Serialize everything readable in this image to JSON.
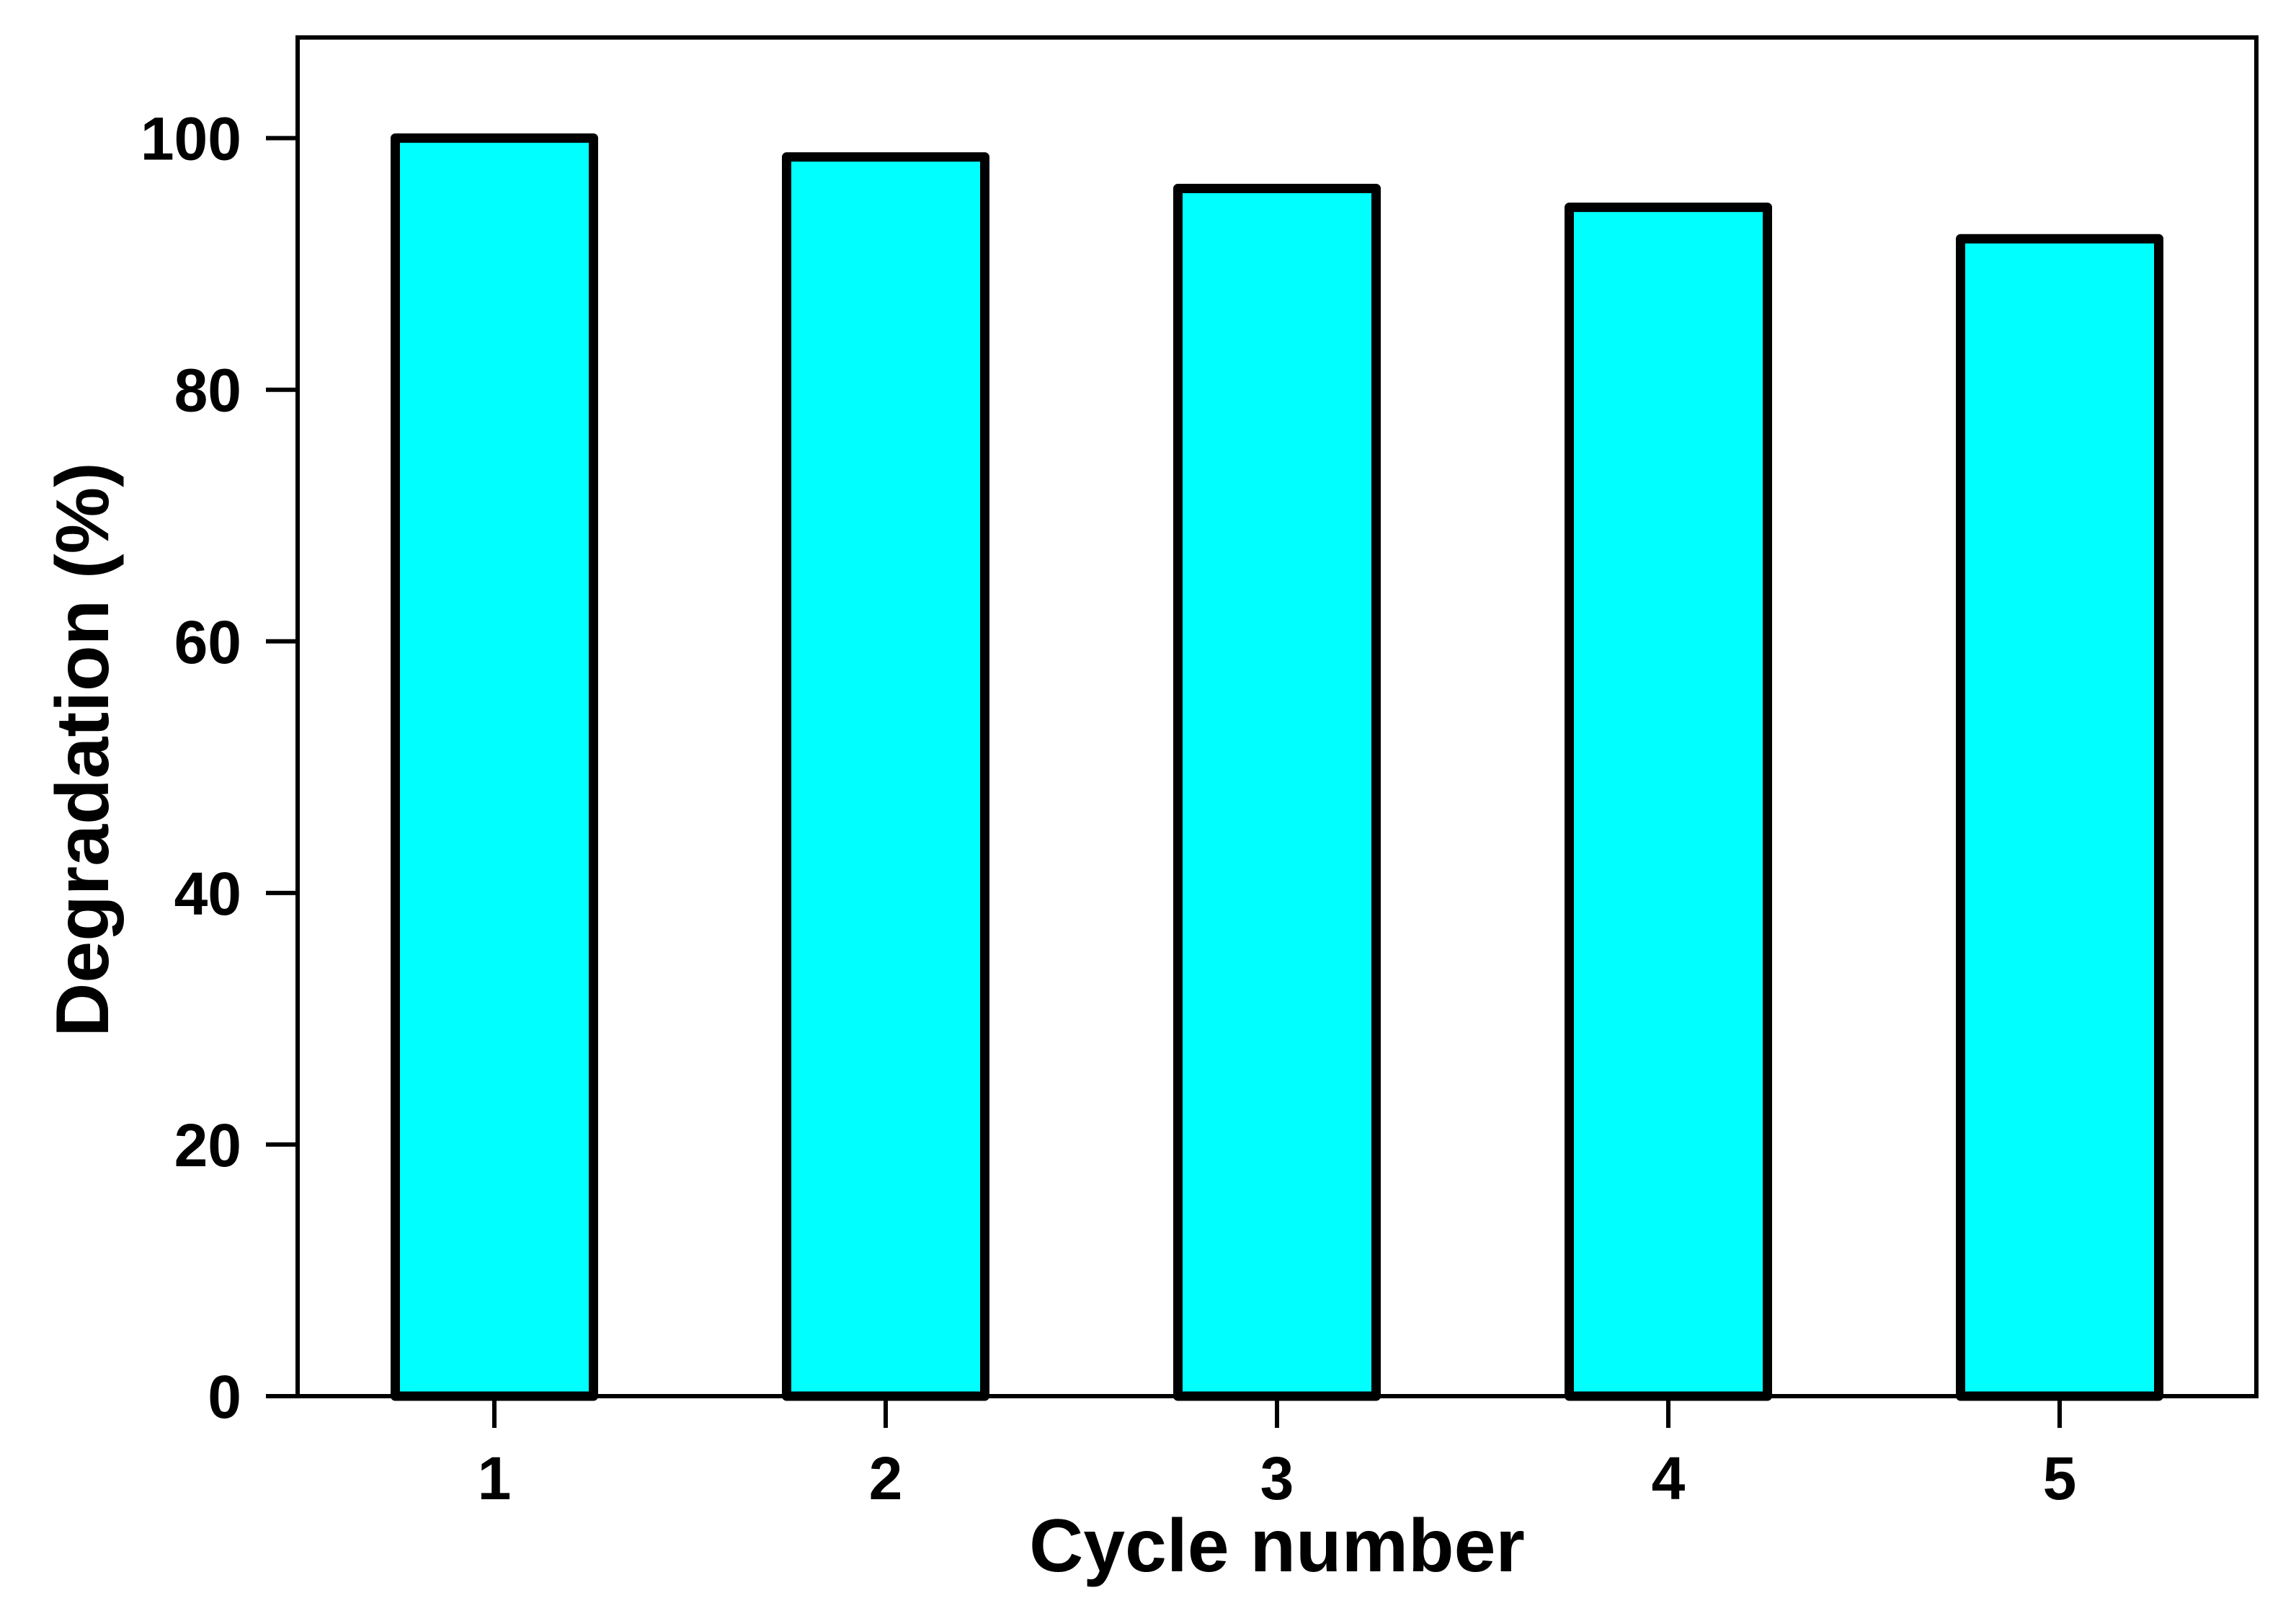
{
  "chart_data": {
    "type": "bar",
    "title": "",
    "xlabel": "Cycle number",
    "ylabel": "Degradation (%)",
    "categories": [
      "1",
      "2",
      "3",
      "4",
      "5"
    ],
    "values": [
      100,
      98.5,
      96,
      94.5,
      92
    ],
    "ylim": [
      0,
      108
    ],
    "yticks": [
      0,
      20,
      40,
      60,
      80,
      100
    ],
    "grid": false,
    "legend": "none",
    "bar_color": "#00FFFF",
    "edge_color": "#000000"
  }
}
